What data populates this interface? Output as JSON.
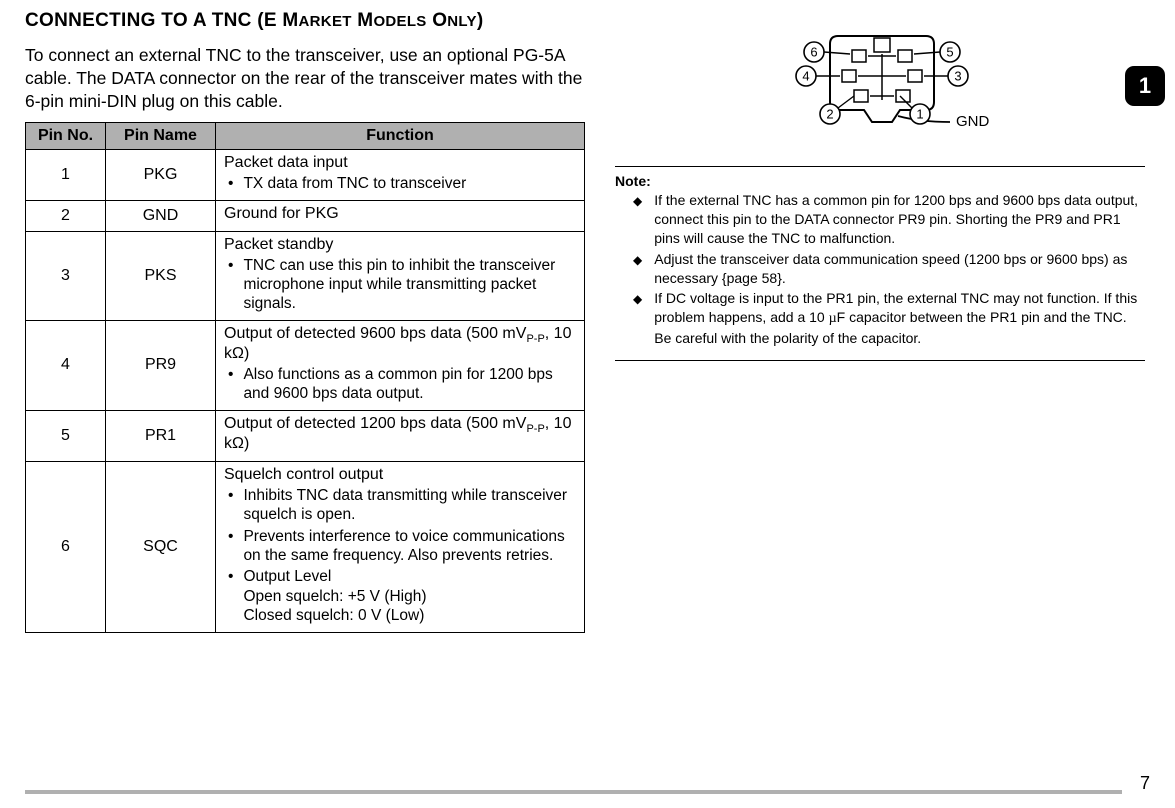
{
  "heading_part1": "CONNECTING TO A TNC (E M",
  "heading_small1": "ARKET",
  "heading_part2": " M",
  "heading_small2": "ODELS",
  "heading_part3": " O",
  "heading_small3": "NLY",
  "heading_part4": ")",
  "intro": "To connect an external TNC to the transceiver, use an optional PG-5A cable. The DATA connector on the rear of the transceiver mates with the 6-pin mini-DIN plug on this cable.",
  "table": {
    "headers": [
      "Pin No.",
      "Pin Name",
      "Function"
    ],
    "rows": [
      {
        "no": "1",
        "name": "PKG",
        "main": "Packet data input",
        "bullets": [
          "TX data from TNC to transceiver"
        ]
      },
      {
        "no": "2",
        "name": "GND",
        "main": "Ground for PKG",
        "bullets": []
      },
      {
        "no": "3",
        "name": "PKS",
        "main": "Packet standby",
        "bullets": [
          "TNC can use this pin to inhibit the transceiver microphone input while transmitting packet signals."
        ]
      },
      {
        "no": "4",
        "name": "PR9",
        "main_html": "Output of detected 9600 bps data (500 mV<span class='sub'>P-P</span>, 10 kΩ)",
        "bullets": [
          "Also functions as a common pin for 1200 bps and 9600 bps data output."
        ]
      },
      {
        "no": "5",
        "name": "PR1",
        "main_html": "Output of detected 1200 bps data (500 mV<span class='sub'>P-P</span>, 10 kΩ)",
        "bullets": []
      },
      {
        "no": "6",
        "name": "SQC",
        "main": "Squelch control output",
        "bullets": [
          "Inhibits TNC data transmitting while transceiver squelch is open.",
          "Prevents interference to voice communications on the same frequency.  Also prevents retries.",
          "Output Level\nOpen squelch: +5 V (High)\nClosed squelch: 0 V (Low)"
        ]
      }
    ]
  },
  "diagram": {
    "pins": {
      "p1": "1",
      "p2": "2",
      "p3": "3",
      "p4": "4",
      "p5": "5",
      "p6": "6"
    },
    "gnd_label": "GND",
    "colors": {
      "stroke": "#000000",
      "fill": "#ffffff",
      "shade": "#c0c0c0"
    }
  },
  "note": {
    "title": "Note:",
    "items": [
      "If the external TNC has a common pin for 1200 bps and 9600 bps data output, connect this pin to the DATA connector PR9 pin.  Shorting the PR9 and PR1 pins will cause the TNC to malfunction.",
      "Adjust the transceiver data communication speed (1200 bps or 9600 bps) as necessary {page 58}.",
      "If DC voltage is input to the PR1 pin, the external TNC may not function.  If this problem happens, add a 10 µF capacitor between the PR1 pin and the TNC.  Be careful with the polarity of the capacitor."
    ]
  },
  "side_tab": "1",
  "page_number": "7",
  "colors": {
    "header_bg": "#b0b0b0",
    "footer_line": "#b0b0b0"
  }
}
